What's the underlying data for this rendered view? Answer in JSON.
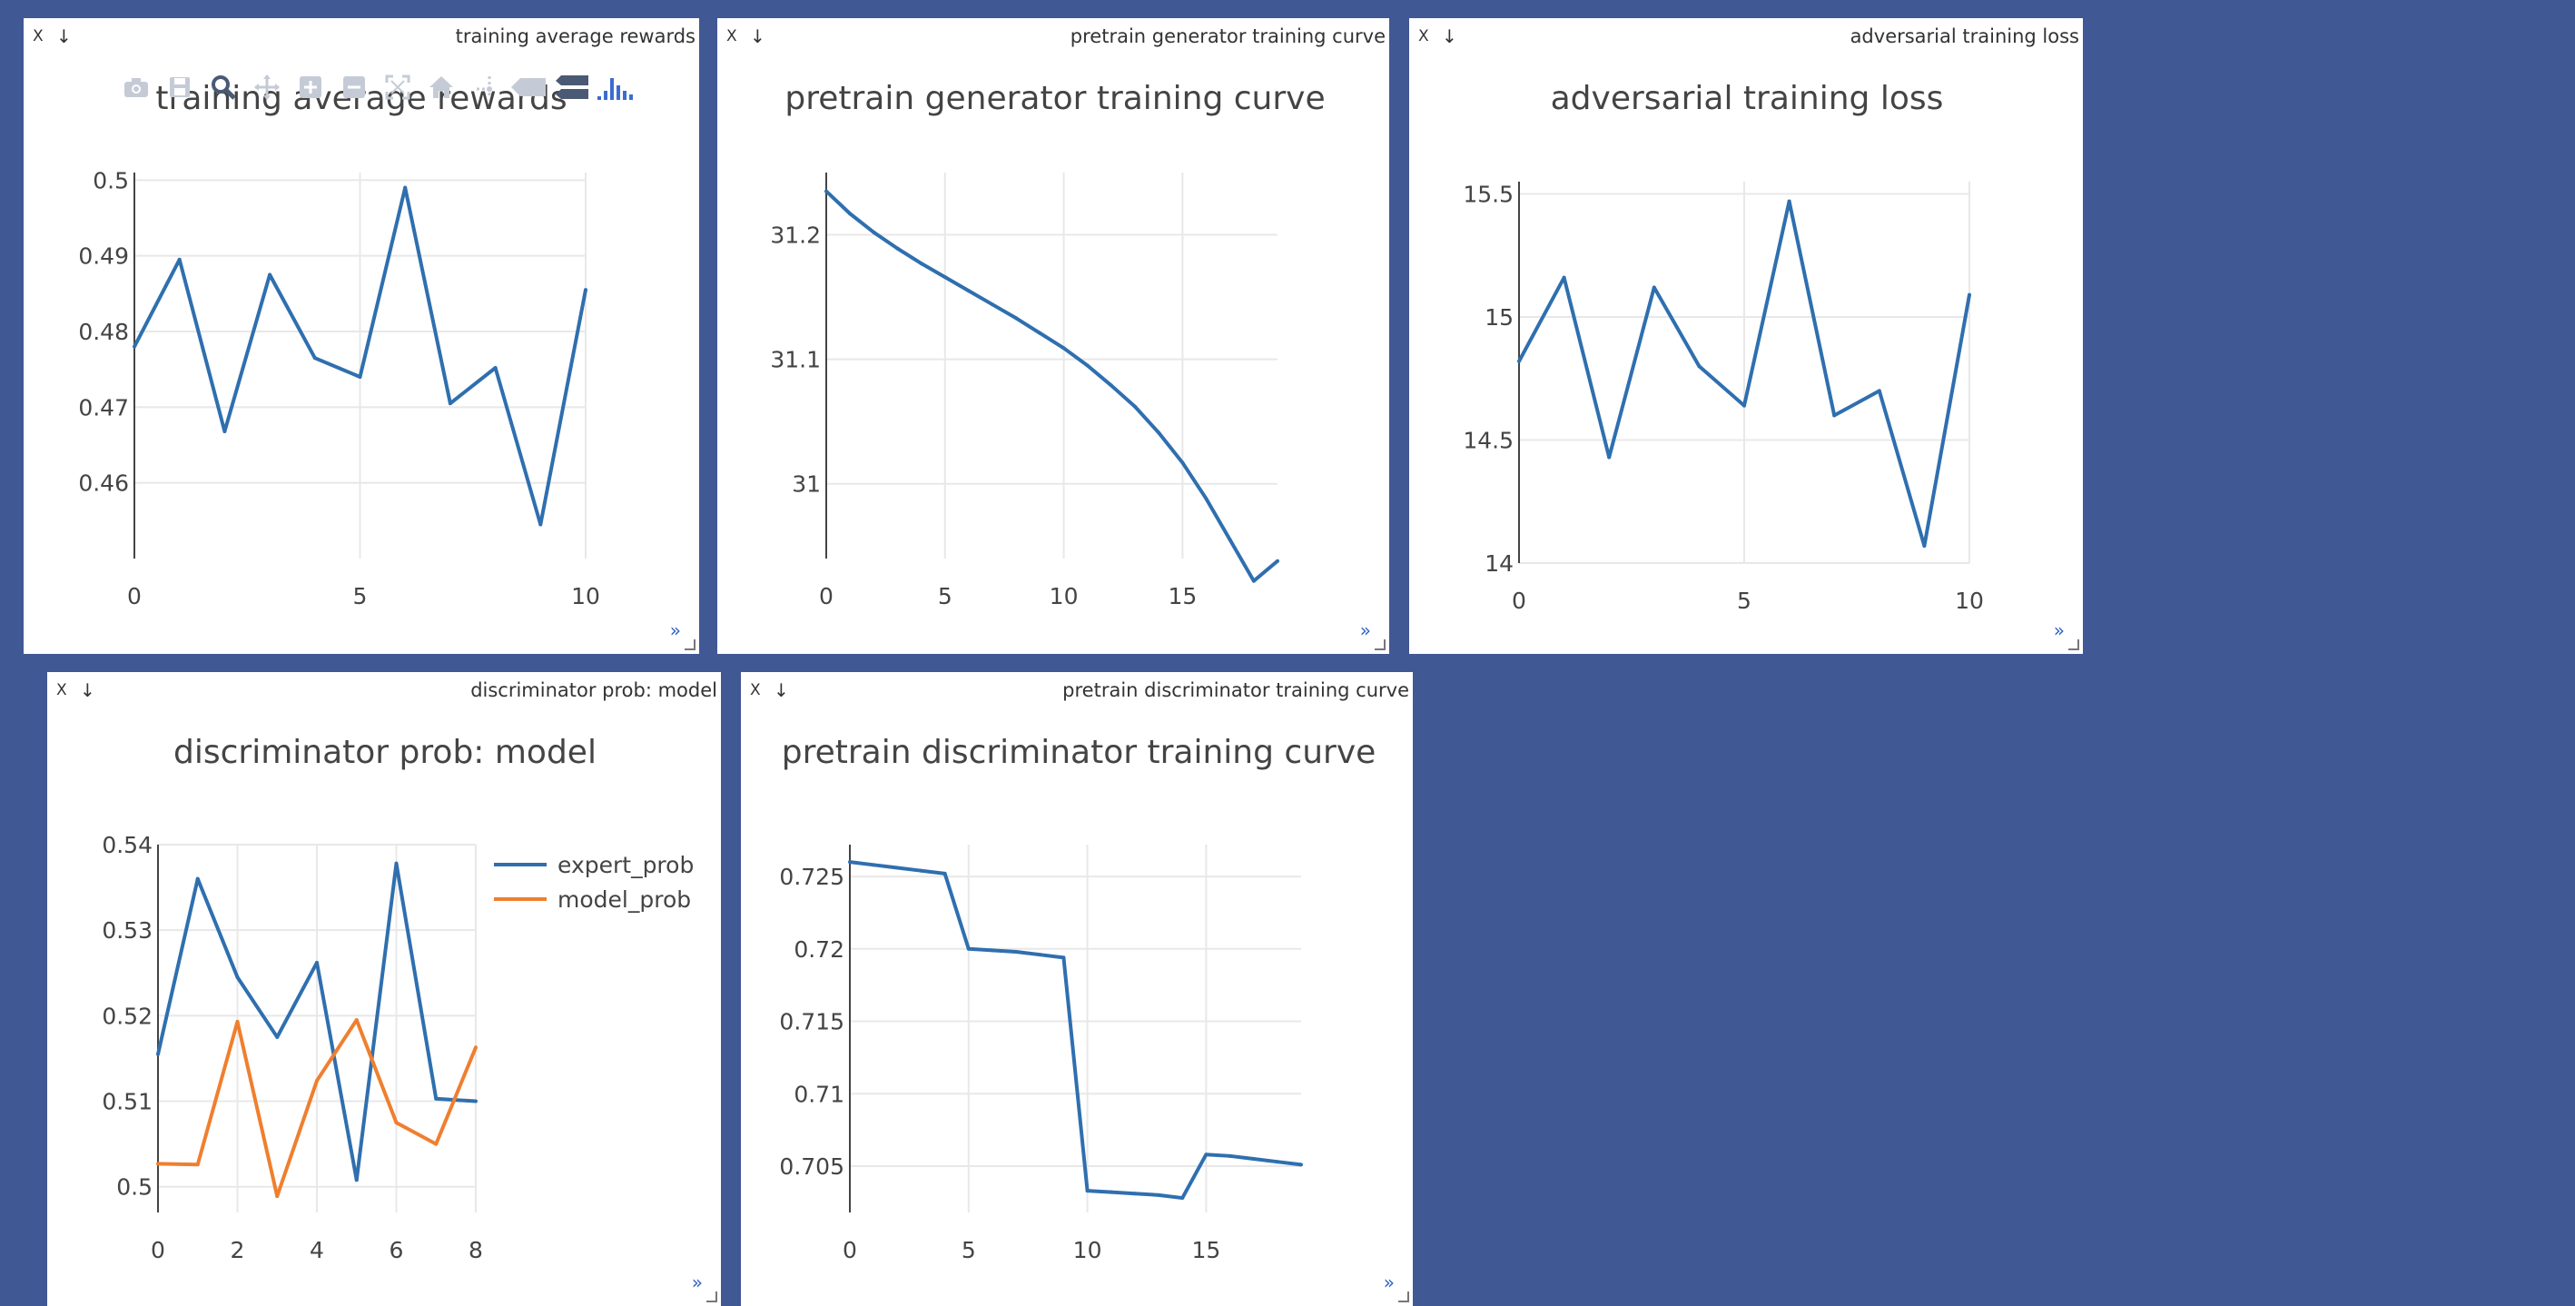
{
  "colors": {
    "background": "#405893",
    "series_blue": "#2f6faf",
    "series_orange": "#ef7f2f",
    "expand_link": "#2f62c9"
  },
  "panes": [
    {
      "tab_title": "training average rewards",
      "close_label": "X",
      "download_label": "↓",
      "expand_label": "»"
    },
    {
      "tab_title": "pretrain generator training curve",
      "close_label": "X",
      "download_label": "↓",
      "expand_label": "»"
    },
    {
      "tab_title": "adversarial training loss",
      "close_label": "X",
      "download_label": "↓",
      "expand_label": "»"
    },
    {
      "tab_title": "discriminator prob: model",
      "close_label": "X",
      "download_label": "↓",
      "expand_label": "»"
    },
    {
      "tab_title": "pretrain discriminator training curve",
      "close_label": "X",
      "download_label": "↓",
      "expand_label": "»"
    }
  ],
  "modebar": {
    "icons": [
      "camera-icon",
      "save-icon",
      "zoom-icon",
      "pan-icon",
      "zoom-in-icon",
      "zoom-out-icon",
      "autoscale-icon",
      "home-icon",
      "spike-lines-icon",
      "hover-closest-icon",
      "hover-compare-icon",
      "plotly-logo-icon"
    ]
  },
  "chart_data": [
    {
      "type": "line",
      "title": "training average rewards",
      "x": [
        0,
        1,
        2,
        3,
        4,
        5,
        6,
        7,
        8,
        9,
        10
      ],
      "series": [
        {
          "values": [
            0.478,
            0.4895,
            0.4668,
            0.4875,
            0.4765,
            0.474,
            0.499,
            0.4705,
            0.4752,
            0.4545,
            0.4855
          ]
        }
      ],
      "xlim": [
        0,
        10
      ],
      "ylim": [
        0.45,
        0.501
      ],
      "xticks": [
        "0",
        "5",
        "10"
      ],
      "yticks": [
        "0.46",
        "0.47",
        "0.48",
        "0.49",
        "0.5"
      ],
      "grid": true
    },
    {
      "type": "line",
      "title": "pretrain generator training curve",
      "x": [
        0,
        1,
        2,
        3,
        4,
        5,
        6,
        7,
        8,
        9,
        10,
        11,
        12,
        13,
        14,
        15,
        16,
        17,
        18,
        19
      ],
      "series": [
        {
          "values": [
            31.235,
            31.217,
            31.202,
            31.189,
            31.177,
            31.166,
            31.155,
            31.144,
            31.133,
            31.121,
            31.109,
            31.095,
            31.079,
            31.062,
            31.041,
            31.017,
            30.988,
            30.955,
            30.922,
            30.938
          ]
        }
      ],
      "xlim": [
        0,
        19
      ],
      "ylim": [
        30.94,
        31.25
      ],
      "xticks": [
        "0",
        "5",
        "10",
        "15"
      ],
      "yticks": [
        "31",
        "31.1",
        "31.2"
      ],
      "grid": true
    },
    {
      "type": "line",
      "title": "adversarial training loss",
      "x": [
        0,
        1,
        2,
        3,
        4,
        5,
        6,
        7,
        8,
        9,
        10
      ],
      "series": [
        {
          "values": [
            14.82,
            15.16,
            14.43,
            15.12,
            14.8,
            14.64,
            15.47,
            14.6,
            14.7,
            14.07,
            15.09
          ]
        }
      ],
      "xlim": [
        0,
        10
      ],
      "ylim": [
        14,
        15.55
      ],
      "xticks": [
        "0",
        "5",
        "10"
      ],
      "yticks": [
        "14",
        "14.5",
        "15",
        "15.5"
      ],
      "grid": true
    },
    {
      "type": "line",
      "title": "discriminator prob: model",
      "x": [
        0,
        1,
        2,
        3,
        4,
        5,
        6,
        7,
        8
      ],
      "series": [
        {
          "name": "expert_prob",
          "values": [
            0.5155,
            0.536,
            0.5245,
            0.5175,
            0.5262,
            0.5008,
            0.5378,
            0.5103,
            0.51
          ]
        },
        {
          "name": "model_prob",
          "values": [
            0.5027,
            0.5026,
            0.5193,
            0.4989,
            0.5124,
            0.5195,
            0.5075,
            0.505,
            0.5163
          ]
        }
      ],
      "xlim": [
        0,
        8
      ],
      "ylim": [
        0.497,
        0.54
      ],
      "xticks": [
        "0",
        "2",
        "4",
        "6",
        "8"
      ],
      "yticks": [
        "0.5",
        "0.51",
        "0.52",
        "0.53",
        "0.54"
      ],
      "legend": "top-right",
      "grid": true
    },
    {
      "type": "line",
      "title": "pretrain discriminator training curve",
      "x": [
        0,
        1,
        2,
        3,
        4,
        5,
        6,
        7,
        8,
        9,
        10,
        11,
        12,
        13,
        14,
        15,
        16,
        17,
        18,
        19
      ],
      "series": [
        {
          "values": [
            0.726,
            0.7258,
            0.7256,
            0.7254,
            0.7252,
            0.72,
            0.7199,
            0.7198,
            0.7196,
            0.7194,
            0.7033,
            0.7032,
            0.7031,
            0.703,
            0.7028,
            0.7058,
            0.7057,
            0.7055,
            0.7053,
            0.7051
          ]
        }
      ],
      "xlim": [
        0,
        19
      ],
      "ylim": [
        0.7018,
        0.7272
      ],
      "xticks": [
        "0",
        "5",
        "10",
        "15"
      ],
      "yticks": [
        "0.705",
        "0.71",
        "0.715",
        "0.72",
        "0.725"
      ],
      "grid": true
    }
  ]
}
